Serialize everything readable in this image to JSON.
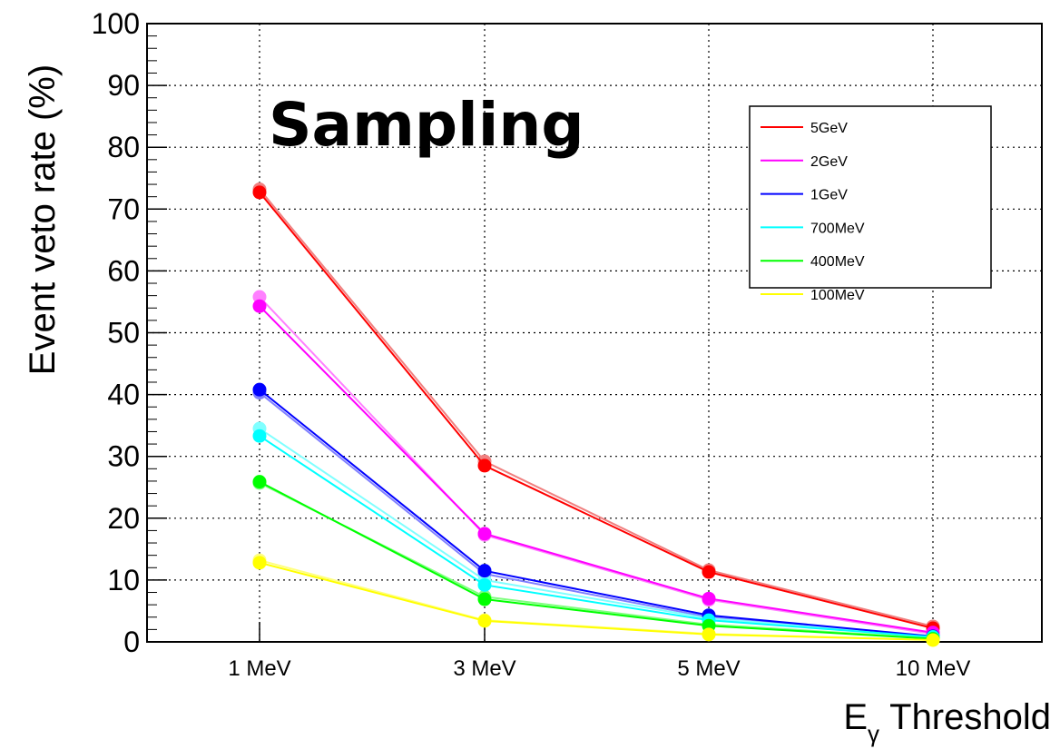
{
  "chart_data": {
    "type": "line",
    "title": "Sampling",
    "xlabel_main": "E",
    "xlabel_sub": "γ",
    "xlabel_rest": " Threshold",
    "ylabel": "Event veto rate (%)",
    "categories": [
      "1 MeV",
      "3 MeV",
      "5 MeV",
      "10 MeV"
    ],
    "ylim": [
      0,
      100
    ],
    "yticks": [
      0,
      10,
      20,
      30,
      40,
      50,
      60,
      70,
      80,
      90,
      100
    ],
    "grid": true,
    "legend_position": "top-right",
    "series": [
      {
        "name": "5GeV",
        "color": "#ff0000",
        "light_color": "#f08080",
        "values": [
          72.7,
          28.5,
          11.3,
          2.2
        ],
        "values_alt": [
          73.2,
          29.2,
          11.6,
          2.5
        ]
      },
      {
        "name": "2GeV",
        "color": "#ff00ff",
        "light_color": "#ff80ff",
        "values": [
          54.3,
          17.5,
          7.0,
          1.5
        ],
        "values_alt": [
          55.8,
          17.3,
          6.8,
          1.3
        ]
      },
      {
        "name": "1GeV",
        "color": "#0000ff",
        "light_color": "#8080ff",
        "values": [
          40.8,
          11.5,
          4.3,
          0.9
        ],
        "values_alt": [
          40.3,
          11.0,
          4.0,
          0.8
        ]
      },
      {
        "name": "700MeV",
        "color": "#00ffff",
        "light_color": "#80ffff",
        "values": [
          33.3,
          9.2,
          3.5,
          0.8
        ],
        "values_alt": [
          34.5,
          10.0,
          3.8,
          0.9
        ]
      },
      {
        "name": "400MeV",
        "color": "#00ff00",
        "light_color": "#80ff80",
        "values": [
          25.9,
          6.9,
          2.6,
          0.5
        ],
        "values_alt": [
          25.7,
          7.3,
          2.8,
          0.6
        ]
      },
      {
        "name": "100MeV",
        "color": "#ffff00",
        "light_color": "#ffff80",
        "values": [
          12.8,
          3.4,
          1.2,
          0.3
        ],
        "values_alt": [
          13.2,
          3.5,
          1.3,
          0.3
        ]
      }
    ]
  }
}
